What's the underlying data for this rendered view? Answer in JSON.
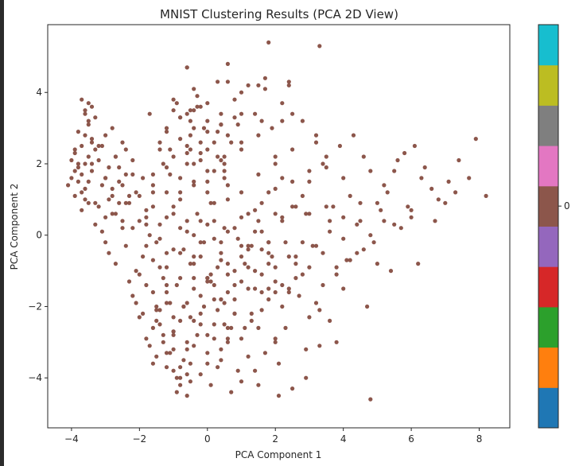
{
  "chart_data": {
    "type": "scatter",
    "title": "MNIST Clustering Results (PCA 2D View)",
    "xlabel": "PCA Component 1",
    "ylabel": "PCA Component 2",
    "xlim": [
      -4.7,
      8.9
    ],
    "ylim": [
      -5.4,
      5.9
    ],
    "xticks": [
      -4,
      -2,
      0,
      2,
      4,
      6,
      8
    ],
    "yticks": [
      -4,
      -2,
      0,
      2,
      4
    ],
    "xtick_labels": [
      "−4",
      "−2",
      "0",
      "2",
      "4",
      "6",
      "8"
    ],
    "ytick_labels": [
      "−4",
      "−2",
      "0",
      "2",
      "4"
    ],
    "grid": false,
    "point_color": "#8c564b",
    "series": [
      {
        "cluster": 0,
        "x": [
          -3.9,
          -3.6,
          -3.8,
          -3.5,
          -3.7,
          -4.0,
          -3.4,
          -3.6,
          -3.9,
          -3.3,
          -3.7,
          -3.5,
          -4.1,
          -3.8,
          -3.6,
          -3.2,
          -3.9,
          -3.4,
          -3.7,
          -3.5,
          -3.3,
          -3.8,
          -4.0,
          -3.6,
          -3.1,
          -3.5,
          -3.8,
          -3.4,
          -3.7,
          -3.9,
          -3.0,
          -2.8,
          -3.2,
          -2.6,
          -3.0,
          -2.7,
          -3.3,
          -2.9,
          -2.5,
          -3.1,
          -2.8,
          -2.4,
          -3.0,
          -2.6,
          -2.2,
          -2.9,
          -2.5,
          -2.7,
          -2.3,
          -2.0,
          -2.4,
          -2.1,
          -1.8,
          -2.3,
          -1.9,
          -1.6,
          -2.2,
          -1.7,
          -1.5,
          -2.0,
          -1.8,
          -1.4,
          -1.6,
          -2.1,
          -1.3,
          -1.7,
          -1.9,
          -1.5,
          -1.2,
          -1.8,
          -1.6,
          -1.3,
          -1.0,
          -1.4,
          -1.1,
          -0.9,
          -1.5,
          -1.2,
          -0.8,
          -1.0,
          -1.3,
          -0.7,
          -0.9,
          -1.1,
          -0.6,
          -0.8,
          -1.2,
          -0.5,
          -0.7,
          -1.0,
          -1.8,
          -1.5,
          -1.2,
          -1.6,
          -1.3,
          -1.0,
          -1.4,
          -1.1,
          -0.8,
          -1.7,
          -1.0,
          -0.6,
          -1.2,
          -0.9,
          -0.5,
          -0.8,
          -0.4,
          -1.1,
          -0.3,
          -0.7,
          -0.5,
          -0.2,
          -0.6,
          -0.3,
          0.0,
          -0.4,
          -0.1,
          0.2,
          -0.3,
          0.1,
          -0.2,
          0.3,
          -0.5,
          0.0,
          0.4,
          -0.1,
          0.2,
          0.5,
          0.1,
          0.3,
          0.4,
          0.6,
          0.2,
          0.8,
          0.5,
          0.3,
          0.7,
          0.9,
          0.4,
          0.6,
          1.0,
          0.8,
          0.5,
          1.1,
          0.7,
          0.9,
          1.2,
          0.6,
          1.0,
          1.3,
          -0.8,
          -0.5,
          -0.2,
          0.1,
          0.4,
          0.7,
          1.0,
          -0.6,
          -0.3,
          0.0,
          0.3,
          0.6,
          0.9,
          1.2,
          -0.4,
          -0.1,
          0.2,
          0.5,
          0.8,
          1.1,
          1.4,
          1.7,
          2.0,
          1.5,
          1.8,
          2.1,
          1.3,
          1.6,
          1.9,
          2.2,
          1.5,
          1.8,
          2.4,
          1.4,
          2.0,
          2.3,
          1.7,
          2.6,
          1.9,
          2.2,
          2.5,
          2.8,
          3.0,
          2.6,
          2.9,
          3.2,
          2.4,
          2.7,
          3.1,
          3.4,
          2.8,
          3.3,
          3.6,
          2.9,
          3.5,
          3.8,
          3.2,
          3.7,
          4.0,
          3.4,
          4.2,
          3.9,
          4.5,
          4.1,
          4.8,
          4.3,
          5.0,
          4.6,
          5.2,
          4.9,
          5.5,
          5.1,
          5.8,
          5.3,
          6.0,
          5.6,
          6.3,
          5.9,
          6.6,
          6.1,
          6.8,
          6.4,
          7.1,
          6.7,
          7.4,
          7.0,
          7.7,
          7.3,
          8.2,
          7.9,
          4.4,
          5.4,
          6.2,
          3.6,
          4.7,
          5.7,
          3.3,
          4.0,
          2.9,
          3.8,
          -0.4,
          0.0,
          0.4,
          0.8,
          1.2,
          1.6,
          2.0,
          -0.2,
          0.2,
          0.6,
          1.0,
          1.4,
          1.8,
          2.2,
          0.0,
          0.5,
          1.0,
          1.5,
          2.0,
          2.5,
          -0.5,
          0.0,
          0.5,
          1.0,
          1.5,
          2.0,
          -0.8,
          -0.2,
          0.4,
          1.0,
          1.6,
          2.2,
          -0.4,
          0.3,
          1.0,
          1.7,
          2.4,
          -0.6,
          0.6,
          1.8,
          -1.2,
          -0.8,
          -0.4,
          0.0,
          0.4,
          -1.0,
          -0.6,
          -0.2,
          0.2,
          0.6,
          -1.4,
          -1.0,
          -0.6,
          -0.2,
          0.2,
          -1.6,
          -1.2,
          -0.8,
          -0.4,
          0.0,
          -2.0,
          -1.6,
          -1.2,
          -0.8,
          -0.4,
          -1.8,
          -1.4,
          -1.0,
          -0.6,
          -0.2,
          -2.2,
          -1.8,
          -1.4,
          -1.0,
          -0.6,
          -2.4,
          -2.0,
          -1.6,
          -1.2,
          -0.8,
          -1.6,
          -1.2,
          -0.8,
          -0.4,
          0.0,
          0.4,
          -1.4,
          -1.0,
          -0.6,
          -0.2,
          0.2,
          0.6,
          -1.2,
          -0.8,
          -0.4,
          0.0,
          0.4,
          0.8,
          -1.0,
          -0.6,
          -0.4,
          0.0,
          0.4,
          0.8,
          1.2,
          1.6,
          -0.2,
          0.2,
          0.6,
          1.0,
          1.4,
          1.8,
          0.0,
          0.4,
          0.8,
          1.2,
          1.6,
          0.6,
          1.0,
          1.4,
          -3.6,
          -3.3,
          -3.0,
          -2.7,
          -3.4,
          -3.1,
          -2.8,
          -2.5,
          -3.2,
          -2.9,
          -2.6,
          -2.3,
          -3.0,
          -2.7,
          -2.4,
          -2.1,
          -2.8,
          -2.5,
          -2.2,
          -1.9,
          -1.5,
          -1.0,
          -0.5,
          0.0,
          0.5,
          1.0,
          1.5,
          2.0,
          -1.2,
          -0.7,
          -0.2,
          0.3,
          0.8,
          1.3,
          1.8,
          2.3,
          -0.9,
          -0.4,
          0.1,
          0.6,
          2.6,
          3.0,
          3.4,
          3.8,
          4.2,
          4.6,
          5.0,
          2.8,
          3.2,
          3.6,
          4.0,
          4.4,
          4.8,
          5.2,
          3.0,
          3.5,
          4.0,
          4.5,
          5.5,
          6.0,
          2.0,
          2.4,
          2.8,
          3.2,
          1.8,
          2.2,
          2.6,
          3.0,
          1.6,
          2.0,
          2.4,
          1.4,
          1.8,
          2.2,
          1.2,
          1.6,
          2.0,
          2.5,
          3.0,
          3.5,
          -0.6,
          0.6,
          1.2,
          -0.4,
          0.0,
          2.2,
          2.5,
          -0.8,
          -0.5,
          1.5,
          -3.5,
          -3.6,
          -3.4,
          -3.7,
          -3.5,
          4.8,
          -0.6,
          2.1,
          2.5,
          3.3
        ],
        "y": [
          2.3,
          2.8,
          1.9,
          3.1,
          2.5,
          1.6,
          2.7,
          2.0,
          2.4,
          3.3,
          1.7,
          2.2,
          1.4,
          2.9,
          3.5,
          2.1,
          1.8,
          2.6,
          1.2,
          1.5,
          2.4,
          2.0,
          2.1,
          1.0,
          2.5,
          0.9,
          1.5,
          1.8,
          0.7,
          1.1,
          1.6,
          1.3,
          0.8,
          1.9,
          0.5,
          2.2,
          0.3,
          1.0,
          1.4,
          0.1,
          0.6,
          2.4,
          -0.2,
          0.9,
          1.7,
          -0.5,
          0.2,
          -0.8,
          1.1,
          0.4,
          -0.3,
          -1.0,
          0.7,
          -1.3,
          -0.6,
          1.2,
          -1.7,
          0.0,
          -2.0,
          -2.3,
          -1.4,
          -0.9,
          -2.6,
          -1.9,
          -2.8,
          -3.1,
          -2.2,
          -3.4,
          -1.6,
          -2.9,
          -3.6,
          -3.0,
          -3.8,
          -2.5,
          -3.3,
          -4.0,
          -2.1,
          -3.7,
          -4.2,
          -2.8,
          -1.2,
          -3.5,
          -4.4,
          -1.9,
          -3.9,
          -2.4,
          -0.5,
          -4.1,
          -2.0,
          -3.2,
          0.3,
          -0.2,
          0.5,
          1.4,
          2.0,
          0.8,
          2.6,
          1.7,
          1.2,
          3.4,
          3.8,
          2.3,
          3.0,
          3.7,
          2.8,
          0.2,
          1.5,
          2.4,
          3.9,
          -0.4,
          3.2,
          2.6,
          2.0,
          3.6,
          2.4,
          1.4,
          3.0,
          1.8,
          0.6,
          0.9,
          2.1,
          2.9,
          -0.8,
          1.2,
          3.4,
          -0.2,
          0.4,
          1.6,
          -1.1,
          2.2,
          -0.5,
          1.0,
          -1.4,
          3.8,
          0.2,
          -0.9,
          2.6,
          -0.1,
          -1.8,
          1.4,
          0.5,
          -2.2,
          2.0,
          -0.8,
          -2.6,
          3.1,
          -1.5,
          -3.0,
          2.4,
          -0.3,
          -4.0,
          -3.6,
          -3.9,
          -4.2,
          -3.5,
          -4.4,
          -4.1,
          -3.2,
          -2.8,
          -3.3,
          -3.7,
          -2.9,
          -3.8,
          -3.4,
          -2.4,
          -2.0,
          -2.5,
          -1.9,
          -2.2,
          -2.6,
          -3.8,
          -3.3,
          -2.9,
          -4.2,
          -1.8,
          -3.6,
          -2.4,
          -1.1,
          -0.6,
          -2.0,
          0.4,
          1.2,
          -1.5,
          3.4,
          2.2,
          -0.2,
          4.1,
          0.8,
          3.0,
          1.6,
          2.4,
          3.2,
          1.5,
          -0.8,
          0.6,
          2.8,
          4.2,
          -1.7,
          -0.3,
          2.0,
          1.1,
          -2.1,
          0.4,
          -3.2,
          1.9,
          -0.9,
          2.6,
          0.8,
          1.6,
          -1.4,
          1.1,
          2.5,
          0.4,
          -0.7,
          1.8,
          2.8,
          0.9,
          2.2,
          1.4,
          -0.2,
          1.8,
          0.7,
          2.3,
          1.2,
          0.5,
          2.1,
          1.6,
          0.8,
          1.3,
          2.5,
          1.0,
          1.9,
          1.5,
          0.4,
          2.1,
          0.9,
          1.6,
          1.2,
          1.1,
          2.7,
          -0.5,
          -1.0,
          -0.8,
          -2.4,
          -2.0,
          0.2,
          -3.1,
          -1.5,
          -4.0,
          -3.0,
          -0.6,
          -1.2,
          -1.8,
          -1.0,
          -0.3,
          -2.1,
          -1.6,
          0.4,
          0.9,
          0.1,
          -0.6,
          0.7,
          -0.2,
          0.5,
          1.5,
          1.8,
          1.2,
          1.7,
          0.6,
          0.8,
          2.4,
          2.9,
          2.2,
          2.6,
          2.8,
          2.0,
          3.3,
          3.6,
          3.1,
          3.4,
          3.2,
          3.7,
          4.1,
          4.3,
          4.0,
          4.4,
          4.3,
          4.7,
          4.8,
          5.4,
          -3.3,
          -3.7,
          -3.1,
          -3.6,
          -3.2,
          -2.7,
          -3.0,
          -2.5,
          -2.9,
          -2.6,
          -2.1,
          -2.3,
          -1.9,
          -2.2,
          -1.8,
          -1.6,
          -1.4,
          -1.2,
          -1.5,
          -1.3,
          -1.1,
          -0.7,
          -0.9,
          -0.5,
          -0.8,
          -0.3,
          -0.1,
          -0.4,
          0.1,
          -0.2,
          0.2,
          0.5,
          0.3,
          0.6,
          0.4,
          0.9,
          1.1,
          0.8,
          1.2,
          1.0,
          1.7,
          1.9,
          1.6,
          2.0,
          1.8,
          2.1,
          2.4,
          2.2,
          2.5,
          2.3,
          2.6,
          2.8,
          2.9,
          2.7,
          3.0,
          3.2,
          3.1,
          3.3,
          3.5,
          3.4,
          0.0,
          0.3,
          -0.2,
          0.2,
          -0.4,
          0.1,
          -0.6,
          -0.1,
          -0.8,
          -0.3,
          -1.0,
          -0.5,
          -1.2,
          -0.7,
          -1.4,
          -0.9,
          -1.6,
          -1.1,
          -1.3,
          -1.5,
          1.3,
          0.9,
          1.6,
          0.6,
          2.0,
          1.4,
          1.1,
          0.4,
          2.5,
          1.9,
          1.5,
          0.9,
          2.8,
          2.2,
          1.7,
          1.2,
          3.0,
          2.6,
          2.1,
          1.6,
          -2.4,
          -2.7,
          -2.3,
          -2.8,
          -2.5,
          -2.9,
          -2.6,
          -3.0,
          -1.9,
          -2.0,
          -1.7,
          -2.1,
          -1.8,
          -2.2,
          -1.5,
          -2.6,
          -1.4,
          -1.2,
          -1.3,
          -1.6,
          -0.6,
          -0.9,
          -0.5,
          -1.1,
          -0.7,
          -0.4,
          -0.8,
          -0.2,
          -0.3,
          0.1,
          -0.1,
          0.3,
          0.0,
          0.4,
          0.6,
          0.8,
          0.5,
          0.9,
          0.3,
          0.7,
          -1.3,
          -1.6,
          -1.1,
          -1.9,
          -0.8,
          -1.4,
          -1.2,
          -2.3,
          -0.4,
          -0.9,
          -0.6,
          0.1,
          -0.2,
          0.4,
          0.6,
          0.9,
          1.3,
          1.5,
          1.8,
          2.2,
          4.7,
          4.3,
          4.2,
          3.5,
          3.7,
          3.2,
          3.4,
          3.3,
          3.5,
          4.2,
          3.7,
          3.4,
          3.6,
          3.8,
          3.2,
          -4.6,
          -4.5,
          -4.5,
          -4.3,
          5.3
        ]
      }
    ],
    "colorbar": {
      "colors": [
        "#1f77b4",
        "#ff7f0e",
        "#2ca02c",
        "#d62728",
        "#9467bd",
        "#8c564b",
        "#e377c2",
        "#7f7f7f",
        "#bcbd22",
        "#17becf"
      ],
      "tick_label": "0",
      "tick_index": 5
    }
  }
}
